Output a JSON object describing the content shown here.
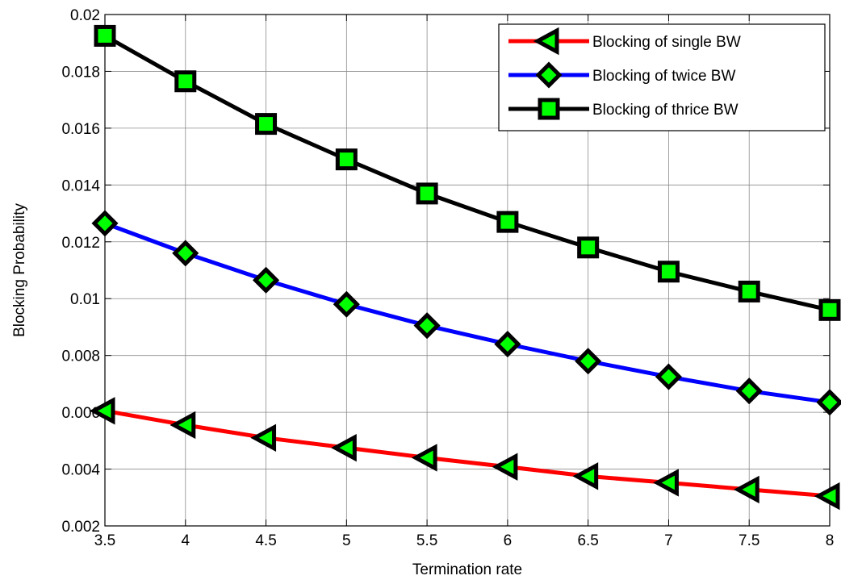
{
  "chart_data": {
    "type": "line",
    "title": "",
    "xlabel": "Termination rate",
    "ylabel": "Blocking Probability",
    "xlim": [
      3.5,
      8
    ],
    "ylim": [
      0.002,
      0.02
    ],
    "grid": true,
    "legend_position": "top-right",
    "x": [
      3.5,
      4,
      4.5,
      5,
      5.5,
      6,
      6.5,
      7,
      7.5,
      8
    ],
    "x_ticks": [
      "3.5",
      "4",
      "4.5",
      "5",
      "5.5",
      "6",
      "6.5",
      "7",
      "7.5",
      "8"
    ],
    "y_ticks": [
      "0.002",
      "0.004",
      "0.006",
      "0.008",
      "0.01",
      "0.012",
      "0.014",
      "0.016",
      "0.018",
      "0.02"
    ],
    "series": [
      {
        "name": "Blocking of single BW",
        "color": "#ff0000",
        "marker": "triangle-left",
        "values": [
          0.00605,
          0.00555,
          0.0051,
          0.00475,
          0.0044,
          0.00408,
          0.00375,
          0.00352,
          0.00328,
          0.00305
        ]
      },
      {
        "name": "Blocking of twice BW",
        "color": "#0000ff",
        "marker": "diamond",
        "values": [
          0.01265,
          0.0116,
          0.01065,
          0.0098,
          0.00905,
          0.0084,
          0.0078,
          0.00725,
          0.00675,
          0.00635
        ]
      },
      {
        "name": "Blocking of thrice BW",
        "color": "#000000",
        "marker": "square",
        "values": [
          0.01925,
          0.01765,
          0.01615,
          0.0149,
          0.0137,
          0.0127,
          0.0118,
          0.01095,
          0.01025,
          0.0096
        ]
      }
    ],
    "marker_fill": "#00ff00",
    "marker_edge": "#000000"
  }
}
